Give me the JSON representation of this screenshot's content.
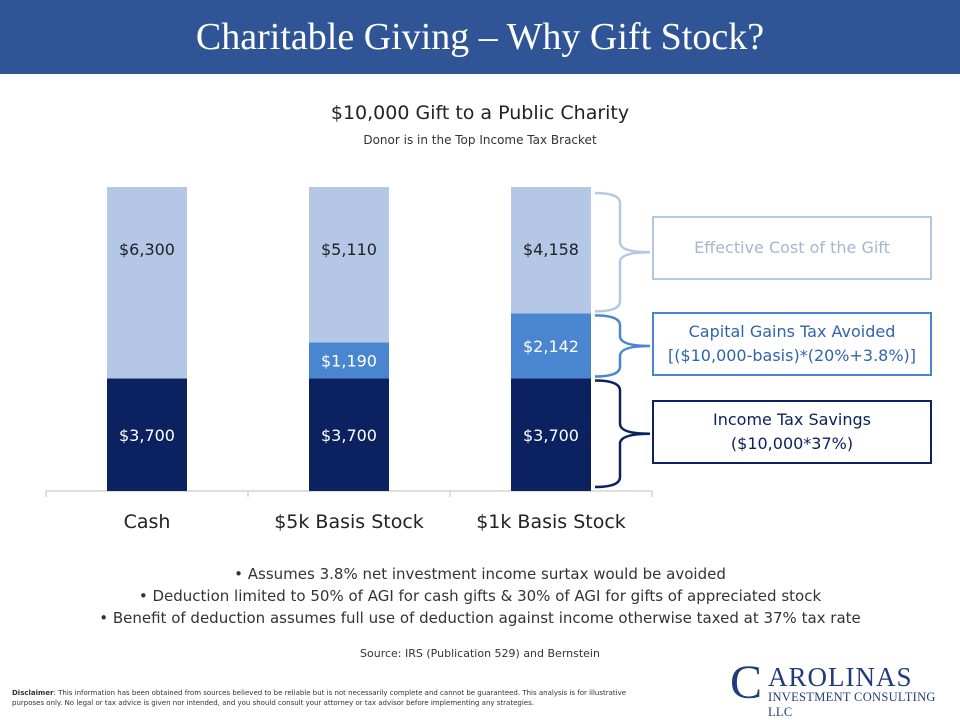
{
  "header": {
    "title": "Charitable Giving – Why Gift Stock?"
  },
  "chart_data": {
    "type": "bar",
    "stacked": true,
    "title": "$10,000 Gift to a Public Charity",
    "subtitle": "Donor is in the Top Income Tax Bracket",
    "categories": [
      "Cash",
      "$5k Basis Stock",
      "$1k Basis Stock"
    ],
    "ylim": [
      0,
      10000
    ],
    "grid": false,
    "series": [
      {
        "name": "Income Tax Savings",
        "color": "#0c2260",
        "values": [
          3700,
          3700,
          3700
        ],
        "labels": [
          "$3,700",
          "$3,700",
          "$3,700"
        ]
      },
      {
        "name": "Capital Gains Tax Avoided",
        "color": "#4a86d0",
        "values": [
          0,
          1190,
          2142
        ],
        "labels": [
          "",
          "$1,190",
          "$2,142"
        ]
      },
      {
        "name": "Effective Cost of the Gift",
        "color": "#b4c7e7",
        "values": [
          6300,
          5110,
          4158
        ],
        "labels": [
          "$6,300",
          "$5,110",
          "$4,158"
        ]
      }
    ]
  },
  "callouts": {
    "effective": {
      "line1": "Effective Cost of the Gift"
    },
    "capgains": {
      "line1": "Capital Gains Tax Avoided",
      "line2": "[($10,000-basis)*(20%+3.8%)]"
    },
    "income": {
      "line1": "Income Tax Savings",
      "line2": "($10,000*37%)"
    }
  },
  "bullets": [
    "Assumes 3.8% net investment income surtax would be avoided",
    "Deduction limited to 50% of AGI for cash gifts & 30% of AGI  for gifts of appreciated stock",
    "Benefit of deduction assumes full use of deduction against income otherwise taxed at 37% tax rate"
  ],
  "source": "Source: IRS (Publication 529) and Bernstein",
  "disclaimer": {
    "label": "Disclaimer",
    "text": ": This information has been obtained from sources believed to be reliable but is not necessarily complete and cannot be guaranteed. This analysis is for illustrative purposes only. No legal or tax advice is given nor intended, and you should consult your attorney or tax advisor before implementing any strategies."
  },
  "logo": {
    "initial": "C",
    "top": "AROLINAS",
    "bottom": "INVESTMENT CONSULTING LLC"
  }
}
